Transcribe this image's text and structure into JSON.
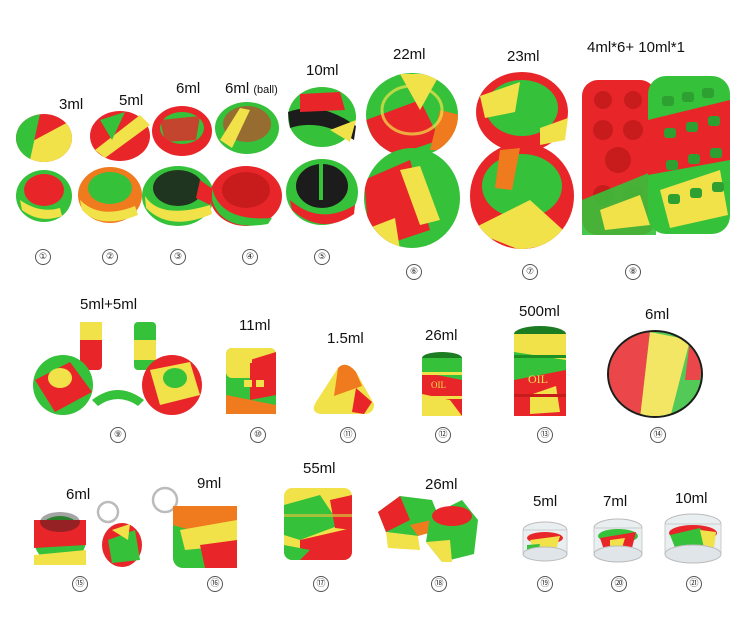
{
  "colors": {
    "red": "#e8262a",
    "green": "#35c13a",
    "yellow": "#f2e24a",
    "orange": "#f07a1e",
    "dark": "#1c1c1c",
    "clear": "#e9eef0"
  },
  "products": [
    {
      "num": "①",
      "label": "3ml"
    },
    {
      "num": "②",
      "label": "5ml"
    },
    {
      "num": "③",
      "label": "6ml"
    },
    {
      "num": "④",
      "label": "6ml",
      "note": "(ball)"
    },
    {
      "num": "⑤",
      "label": "10ml"
    },
    {
      "num": "⑥",
      "label": "22ml"
    },
    {
      "num": "⑦",
      "label": "23ml"
    },
    {
      "num": "⑧",
      "label": "4ml*6+ 10ml*1"
    },
    {
      "num": "⑨",
      "label": "5ml+5ml"
    },
    {
      "num": "⑩",
      "label": "11ml"
    },
    {
      "num": "⑪",
      "label": "1.5ml"
    },
    {
      "num": "⑫",
      "label": "26ml",
      "print": "OIL"
    },
    {
      "num": "⑬",
      "label": "500ml",
      "print": "OIL"
    },
    {
      "num": "⑭",
      "label": "6ml"
    },
    {
      "num": "⑮",
      "label": "6ml"
    },
    {
      "num": "⑯",
      "label": "9ml"
    },
    {
      "num": "⑰",
      "label": "55ml"
    },
    {
      "num": "⑱",
      "label": "26ml"
    },
    {
      "num": "⑲",
      "label": "5ml"
    },
    {
      "num": "⑳",
      "label": "7ml"
    },
    {
      "num": "㉑",
      "label": "10ml"
    }
  ]
}
